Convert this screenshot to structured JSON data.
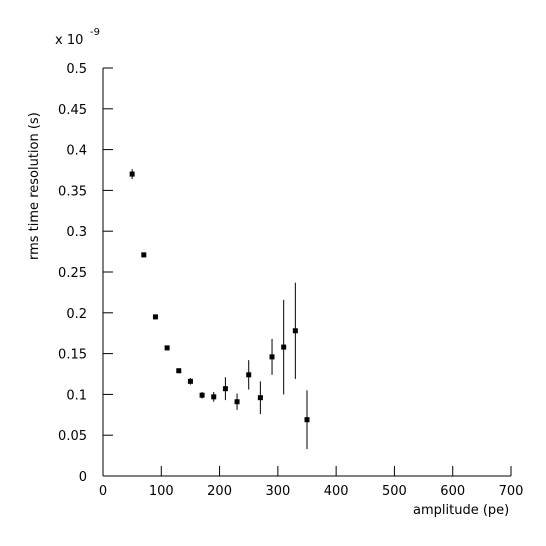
{
  "chart_data": {
    "type": "scatter",
    "x_label": "amplitude (pe)",
    "y_label": "rms time resolution (s)",
    "axis_multiplier": {
      "base": "x 10",
      "exponent": "-9"
    },
    "x": [
      50,
      70,
      90,
      110,
      130,
      150,
      170,
      190,
      210,
      230,
      250,
      270,
      290,
      310,
      330,
      350
    ],
    "values": [
      0.37,
      0.271,
      0.195,
      0.157,
      0.129,
      0.116,
      0.099,
      0.097,
      0.107,
      0.091,
      0.124,
      0.096,
      0.146,
      0.158,
      0.178,
      0.069
    ],
    "errors": [
      0.006,
      0.003,
      0.003,
      0.003,
      0.003,
      0.004,
      0.004,
      0.006,
      0.014,
      0.01,
      0.018,
      0.02,
      0.022,
      0.058,
      0.059,
      0.036
    ],
    "color": "#000000",
    "xlim": [
      0,
      700
    ],
    "xticks": [
      0,
      100,
      200,
      300,
      400,
      500,
      600,
      700
    ],
    "ylim": [
      0,
      0.5
    ],
    "yticks": [
      0,
      0.05,
      0.1,
      0.15,
      0.2,
      0.25,
      0.3,
      0.35,
      0.4,
      0.45,
      0.5
    ]
  }
}
